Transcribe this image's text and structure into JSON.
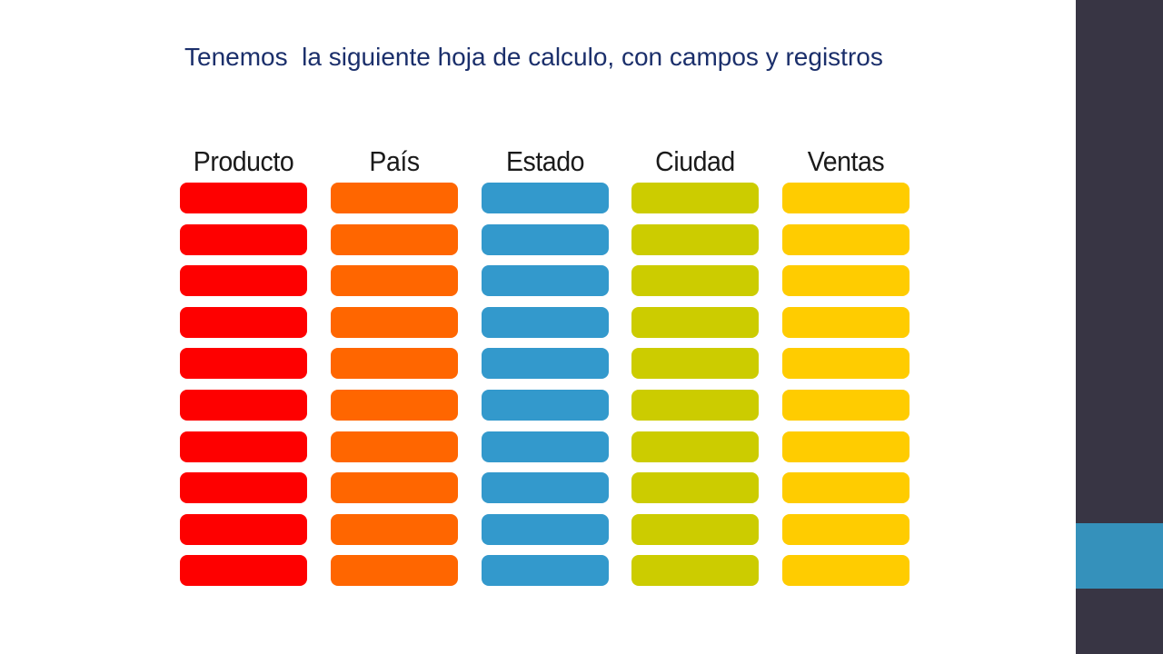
{
  "slide": {
    "title": "Tenemos  la siguiente hoja de calculo, con campos y registros"
  },
  "theme": {
    "panel_color": "#383544",
    "accent_color": "#3591bb",
    "title_color": "#1b2f6b"
  },
  "fields": [
    {
      "label": "Producto",
      "color": "#fe0000",
      "records": 10
    },
    {
      "label": "País",
      "color": "#ff6600",
      "records": 10
    },
    {
      "label": "Estado",
      "color": "#3399cc",
      "records": 10
    },
    {
      "label": "Ciudad",
      "color": "#cccc00",
      "records": 10
    },
    {
      "label": "Ventas",
      "color": "#ffcc00",
      "records": 10
    }
  ]
}
